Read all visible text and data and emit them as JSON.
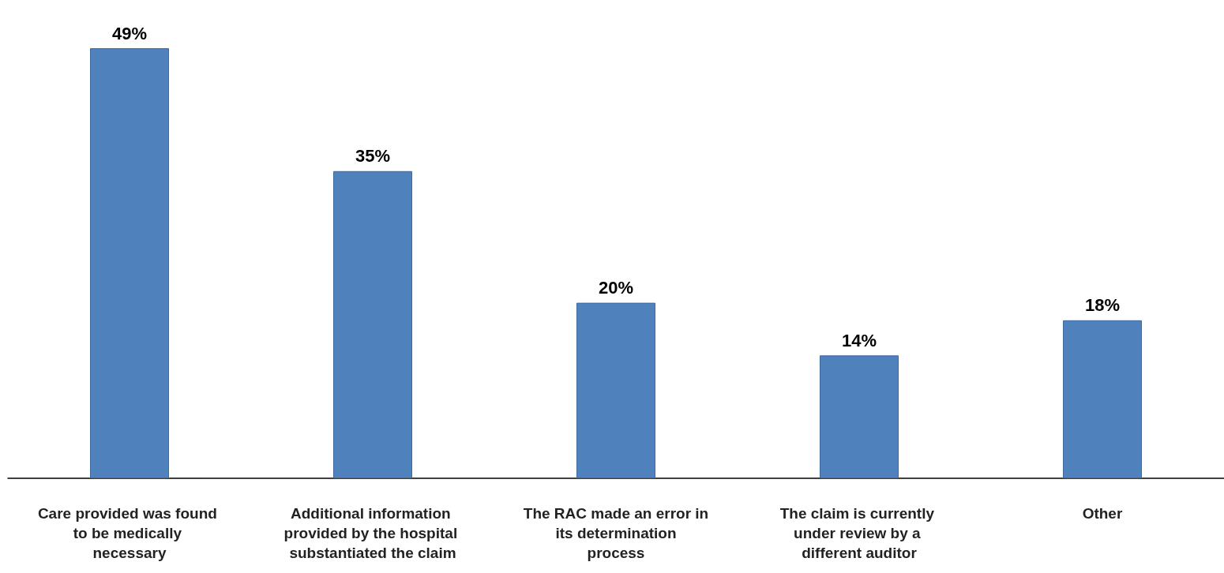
{
  "chart_data": {
    "type": "bar",
    "categories": [
      "Care provided was found to be medically necessary",
      "Additional information provided by the hospital substantiated the claim",
      "The RAC made an error in its determination process",
      "The claim is currently under review by a different auditor",
      "Other"
    ],
    "values": [
      49,
      35,
      20,
      14,
      18
    ],
    "value_labels": [
      "49%",
      "35%",
      "20%",
      "14%",
      "18%"
    ],
    "color": "#4f81bd"
  }
}
